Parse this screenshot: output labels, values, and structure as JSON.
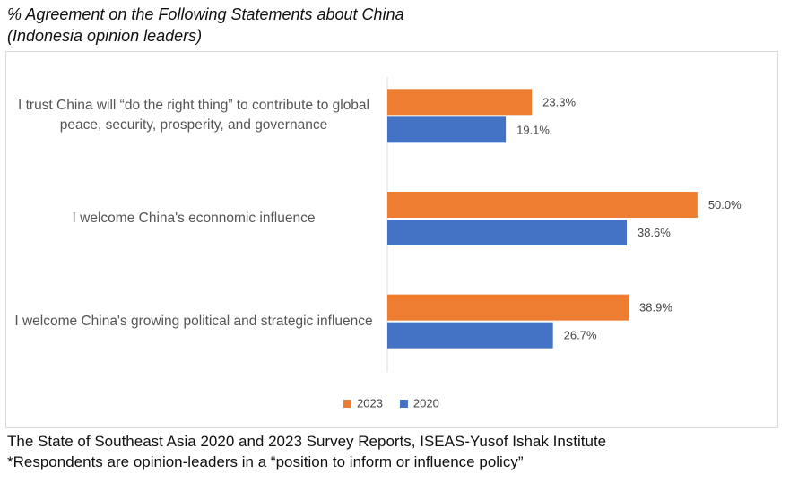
{
  "chart_data": {
    "type": "barh",
    "title": "% Agreement on the Following Statements about China",
    "subtitle": "(Indonesia opinion leaders)",
    "categories": [
      "I trust China will “do the right thing” to contribute to global peace, security, prosperity, and governance",
      "I welcome China's econnomic influence",
      "I welcome China's growing political and strategic influence"
    ],
    "series": [
      {
        "name": "2023",
        "color": "#ed7d31",
        "values": [
          23.3,
          50.0,
          38.9
        ],
        "value_labels": [
          "23.3%",
          "50.0%",
          "38.9%"
        ]
      },
      {
        "name": "2020",
        "color": "#4472c4",
        "values": [
          19.1,
          38.6,
          26.7
        ],
        "value_labels": [
          "19.1%",
          "38.6%",
          "26.7%"
        ]
      }
    ],
    "xlim": [
      0,
      60
    ],
    "legend": "bottom",
    "source": "The State of Southeast Asia 2020 and 2023 Survey Reports, ISEAS-Yusof Ishak Institute",
    "note": "*Respondents are opinion-leaders in a “position to inform or influence policy”"
  }
}
